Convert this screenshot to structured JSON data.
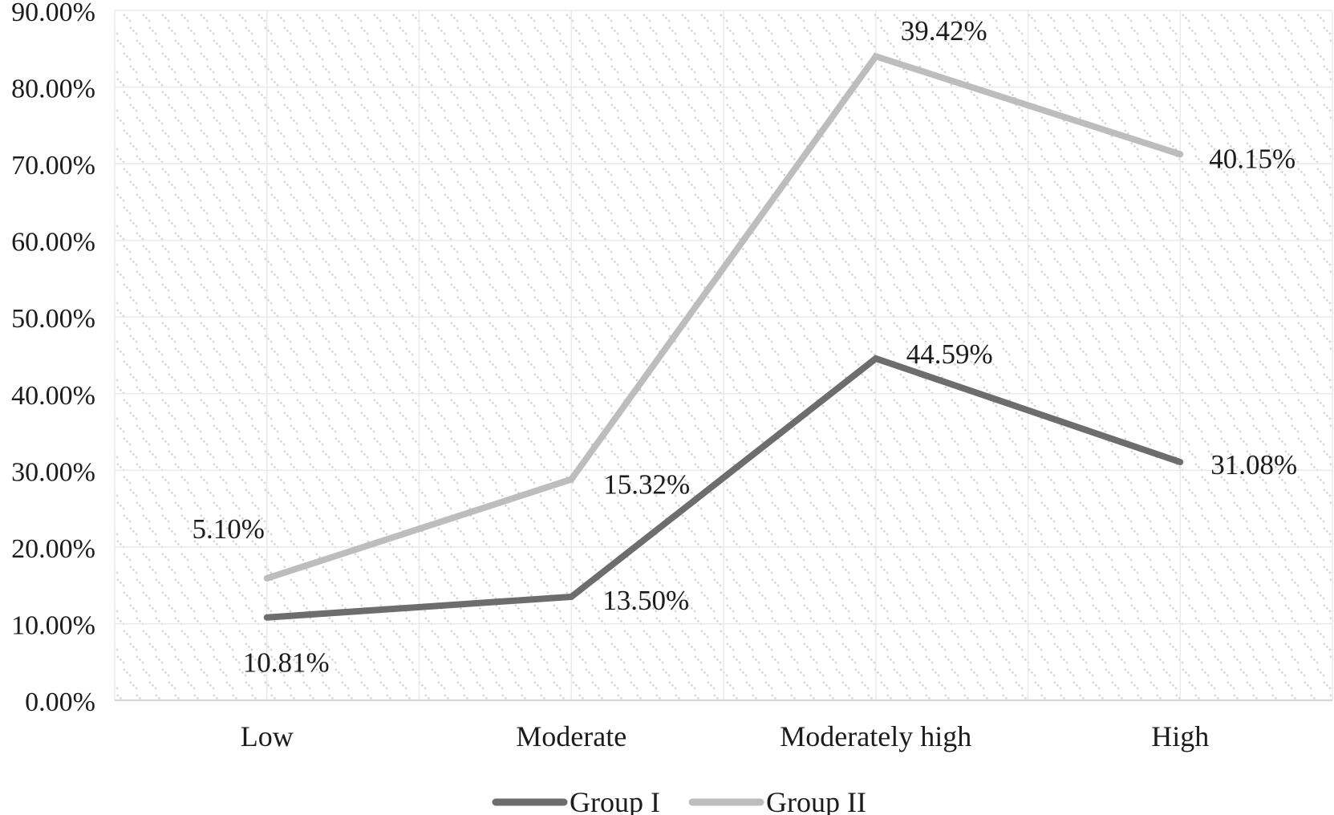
{
  "chart_data": {
    "type": "line",
    "stacked": true,
    "title": "",
    "xlabel": "",
    "ylabel": "",
    "categories": [
      "Low",
      "Moderate",
      "Moderately high",
      "High"
    ],
    "series": [
      {
        "name": "Group I",
        "values": [
          10.81,
          13.5,
          44.59,
          31.08
        ],
        "labels": [
          "10.81%",
          "13.50%",
          "44.59%",
          "31.08%"
        ],
        "color": "#6d6d6d",
        "label_offsets": [
          [
            24,
            68
          ],
          [
            93,
            16
          ],
          [
            92,
            6
          ],
          [
            92,
            15
          ]
        ]
      },
      {
        "name": "Group II",
        "values": [
          5.1,
          15.32,
          39.42,
          40.15
        ],
        "labels": [
          "5.10%",
          "15.32%",
          "39.42%",
          "40.15%"
        ],
        "color": "#bdbdbd",
        "label_offsets": [
          [
            -48,
            -50
          ],
          [
            94,
            18
          ],
          [
            85,
            -20
          ],
          [
            90,
            17
          ]
        ]
      }
    ],
    "y_axis": {
      "min": 0,
      "max": 90,
      "step": 10,
      "tick_labels": [
        "0.00%",
        "10.00%",
        "20.00%",
        "30.00%",
        "40.00%",
        "50.00%",
        "60.00%",
        "70.00%",
        "80.00%",
        "90.00%"
      ]
    },
    "grid": {
      "horizontal": true,
      "vertical": true,
      "vertical_divisions": 8
    },
    "legend": {
      "position": "bottom",
      "entries": [
        "Group I",
        "Group II"
      ]
    },
    "plot_area_fill": "light-downward-diagonal-hatch",
    "colors": {
      "background": "#ffffff",
      "gridline": "#e8eaeb",
      "axis_line": "#d4d7d8",
      "hatch": "#d4d4d4",
      "text": "#1c1c1c"
    }
  }
}
